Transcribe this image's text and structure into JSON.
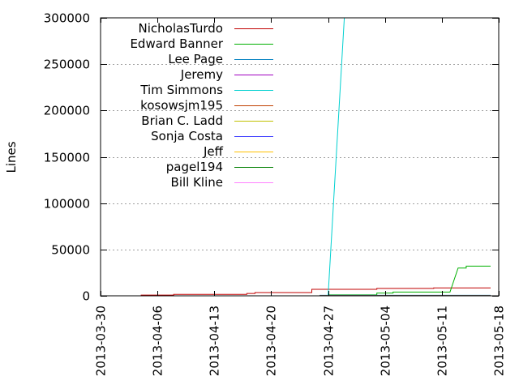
{
  "chart_data": {
    "type": "line",
    "title": "",
    "xlabel": "",
    "ylabel": "Lines",
    "x_type": "date",
    "xlim": [
      "2013-03-30",
      "2013-05-18"
    ],
    "ylim": [
      0,
      300000
    ],
    "x_ticks": [
      "2013-03-30",
      "2013-04-06",
      "2013-04-13",
      "2013-04-20",
      "2013-04-27",
      "2013-05-04",
      "2013-05-11",
      "2013-05-18"
    ],
    "y_ticks": [
      0,
      50000,
      100000,
      150000,
      200000,
      250000,
      300000
    ],
    "grid": true,
    "legend_position": "top-left",
    "series": [
      {
        "name": "NicholasTurdo",
        "color": "#c00000",
        "points": [
          [
            "2013-04-04",
            0
          ],
          [
            "2013-04-04",
            800
          ],
          [
            "2013-04-08",
            800
          ],
          [
            "2013-04-08",
            1500
          ],
          [
            "2013-04-17",
            1500
          ],
          [
            "2013-04-17",
            2500
          ],
          [
            "2013-04-18",
            2500
          ],
          [
            "2013-04-18",
            3500
          ],
          [
            "2013-04-25",
            3500
          ],
          [
            "2013-04-25",
            7000
          ],
          [
            "2013-05-03",
            7000
          ],
          [
            "2013-05-03",
            8000
          ],
          [
            "2013-05-10",
            8000
          ],
          [
            "2013-05-10",
            8500
          ],
          [
            "2013-05-17",
            8500
          ]
        ]
      },
      {
        "name": "Edward Banner",
        "color": "#00b000",
        "points": [
          [
            "2013-04-27",
            0
          ],
          [
            "2013-04-27",
            1000
          ],
          [
            "2013-05-03",
            1000
          ],
          [
            "2013-05-03",
            3000
          ],
          [
            "2013-05-05",
            3000
          ],
          [
            "2013-05-05",
            4000
          ],
          [
            "2013-05-12",
            4000
          ],
          [
            "2013-05-13",
            30000
          ],
          [
            "2013-05-14",
            30000
          ],
          [
            "2013-05-14",
            32000
          ],
          [
            "2013-05-17",
            32000
          ]
        ]
      },
      {
        "name": "Lee Page",
        "color": "#0080c0",
        "points": [
          [
            "2013-04-26",
            0
          ],
          [
            "2013-04-26",
            500
          ],
          [
            "2013-05-17",
            500
          ]
        ]
      },
      {
        "name": "Jeremy",
        "color": "#a000c0",
        "points": []
      },
      {
        "name": "Tim Simmons",
        "color": "#00d0d0",
        "points": [
          [
            "2013-04-27",
            0
          ],
          [
            "2013-04-29",
            300000
          ],
          [
            "2013-05-07",
            300000
          ]
        ]
      },
      {
        "name": "kosowsjm195",
        "color": "#c04000",
        "points": [
          [
            "2013-04-26",
            0
          ],
          [
            "2013-04-26",
            300
          ],
          [
            "2013-05-17",
            300
          ]
        ]
      },
      {
        "name": "Brian C. Ladd",
        "color": "#c0c000",
        "points": []
      },
      {
        "name": "Sonja Costa",
        "color": "#4040ff",
        "points": []
      },
      {
        "name": "Jeff",
        "color": "#ffc000",
        "points": []
      },
      {
        "name": "pagel194",
        "color": "#008000",
        "points": []
      },
      {
        "name": "Bill Kline",
        "color": "#ff80ff",
        "points": []
      }
    ]
  }
}
